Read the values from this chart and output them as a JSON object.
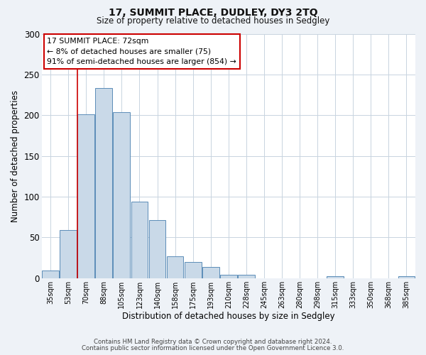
{
  "title": "17, SUMMIT PLACE, DUDLEY, DY3 2TQ",
  "subtitle": "Size of property relative to detached houses in Sedgley",
  "xlabel": "Distribution of detached houses by size in Sedgley",
  "ylabel": "Number of detached properties",
  "categories": [
    "35sqm",
    "53sqm",
    "70sqm",
    "88sqm",
    "105sqm",
    "123sqm",
    "140sqm",
    "158sqm",
    "175sqm",
    "193sqm",
    "210sqm",
    "228sqm",
    "245sqm",
    "263sqm",
    "280sqm",
    "298sqm",
    "315sqm",
    "333sqm",
    "350sqm",
    "368sqm",
    "385sqm"
  ],
  "values": [
    9,
    59,
    201,
    233,
    204,
    94,
    71,
    27,
    20,
    14,
    4,
    4,
    0,
    0,
    0,
    0,
    2,
    0,
    0,
    0,
    2
  ],
  "bar_color": "#c9d9e8",
  "bar_edge_color": "#5b8db8",
  "ylim": [
    0,
    300
  ],
  "yticks": [
    0,
    50,
    100,
    150,
    200,
    250,
    300
  ],
  "vline_color": "#cc0000",
  "vline_pos": 1.5,
  "annotation_title": "17 SUMMIT PLACE: 72sqm",
  "annotation_line1": "← 8% of detached houses are smaller (75)",
  "annotation_line2": "91% of semi-detached houses are larger (854) →",
  "annotation_box_color": "#ffffff",
  "annotation_box_edge": "#cc0000",
  "footer1": "Contains HM Land Registry data © Crown copyright and database right 2024.",
  "footer2": "Contains public sector information licensed under the Open Government Licence 3.0.",
  "bg_color": "#eef2f7",
  "plot_bg_color": "#ffffff",
  "grid_color": "#c8d4e0"
}
